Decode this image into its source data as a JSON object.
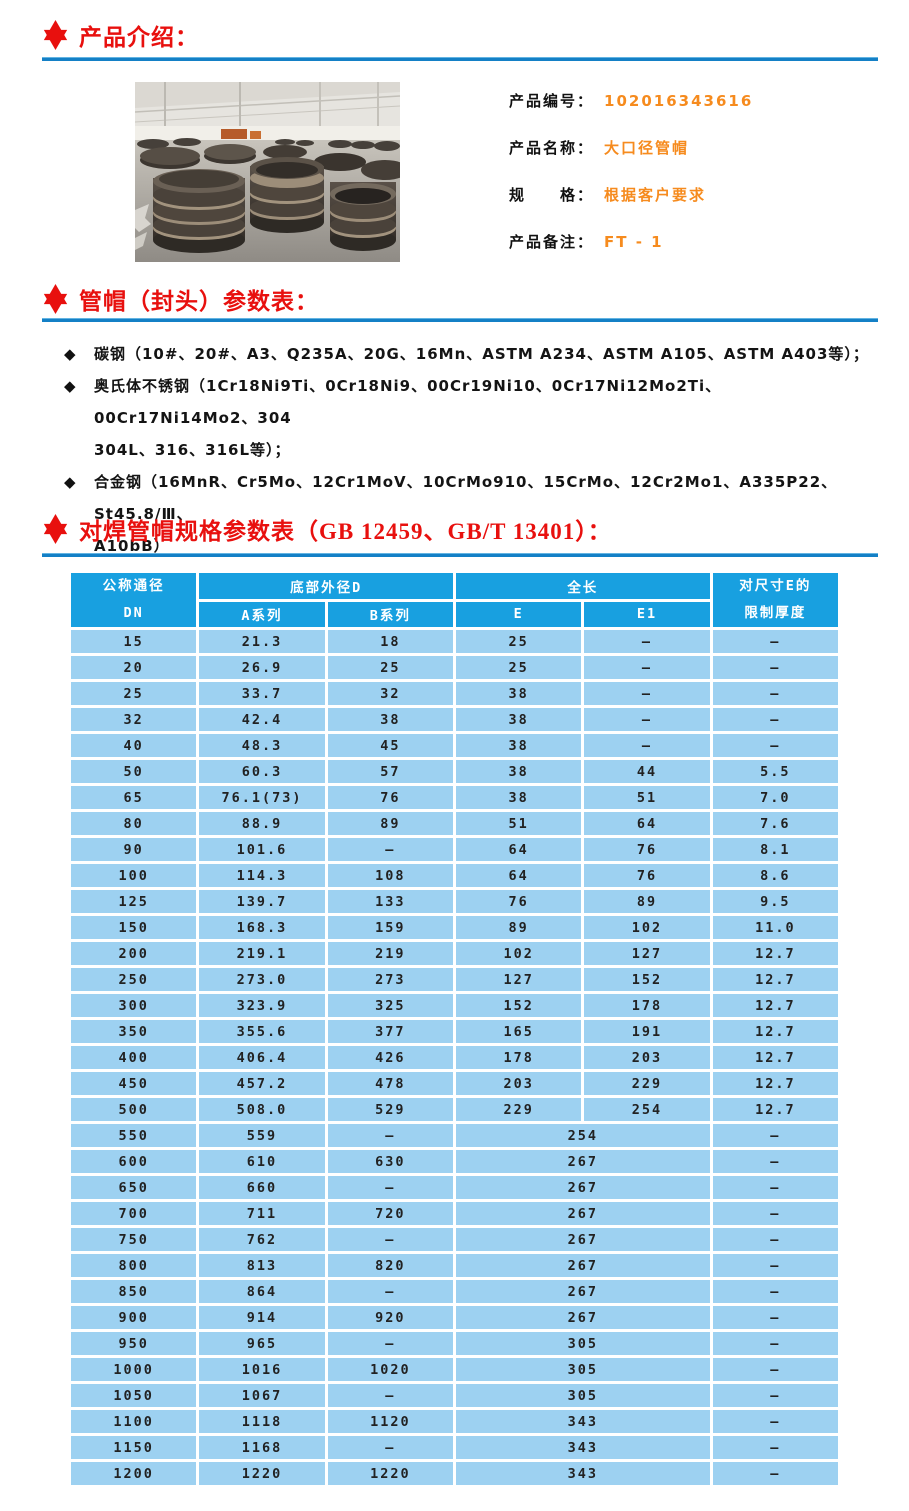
{
  "colors": {
    "heading_red": "#e8100e",
    "rule_blue": "#1480c6",
    "value_orange": "#f68b1e",
    "table_header_blue": "#18a0e0",
    "table_row_blue": "#9dd1f1"
  },
  "intro": {
    "title": "产品介绍："
  },
  "product": {
    "photo_alt": "warehouse with stacked large-diameter steel pipe caps",
    "fields": [
      {
        "label": "产品编号：",
        "value": "102016343616"
      },
      {
        "label": "产品名称：",
        "value": "大口径管帽"
      },
      {
        "label": "规　　格：",
        "value": "根据客户要求"
      },
      {
        "label": "产品备注：",
        "value": "FT - 1"
      }
    ]
  },
  "params": {
    "title": "管帽（封头）参数表：",
    "bullet_glyph": "◆",
    "items": [
      {
        "lines": [
          "碳钢（10#、20#、A3、Q235A、20G、16Mn、ASTM A234、ASTM A105、ASTM A403等）；",
          ""
        ]
      },
      {
        "lines": [
          "奥氏体不锈钢（1Cr18Ni9Ti、0Cr18Ni9、00Cr19Ni10、0Cr17Ni12Mo2Ti、00Cr17Ni14Mo2、304",
          "304L、316、316L等）；"
        ]
      },
      {
        "lines": [
          "合金钢（16MnR、Cr5Mo、12Cr1MoV、10CrMo910、15CrMo、12Cr2Mo1、A335P22、St45.8/Ⅲ、",
          "A10bB）"
        ]
      }
    ]
  },
  "spec": {
    "title_main": "对焊管帽规格参数表",
    "title_std": "（GB 12459、GB/T 13401）："
  },
  "table": {
    "header": {
      "dn_top": "公称通径",
      "dn_bottom": "DN",
      "d_group": "底部外径D",
      "a_series": "A系列",
      "b_series": "B系列",
      "len_group": "全长",
      "e": "E",
      "e1": "E1",
      "t_top": "对尺寸E的",
      "t_bottom": "限制厚度"
    },
    "rows": [
      {
        "dn": "15",
        "a": "21.3",
        "b": "18",
        "e": "25",
        "e1": "–",
        "t": "–"
      },
      {
        "dn": "20",
        "a": "26.9",
        "b": "25",
        "e": "25",
        "e1": "–",
        "t": "–"
      },
      {
        "dn": "25",
        "a": "33.7",
        "b": "32",
        "e": "38",
        "e1": "–",
        "t": "–"
      },
      {
        "dn": "32",
        "a": "42.4",
        "b": "38",
        "e": "38",
        "e1": "–",
        "t": "–"
      },
      {
        "dn": "40",
        "a": "48.3",
        "b": "45",
        "e": "38",
        "e1": "–",
        "t": "–"
      },
      {
        "dn": "50",
        "a": "60.3",
        "b": "57",
        "e": "38",
        "e1": "44",
        "t": "5.5"
      },
      {
        "dn": "65",
        "a": "76.1(73)",
        "b": "76",
        "e": "38",
        "e1": "51",
        "t": "7.0"
      },
      {
        "dn": "80",
        "a": "88.9",
        "b": "89",
        "e": "51",
        "e1": "64",
        "t": "7.6"
      },
      {
        "dn": "90",
        "a": "101.6",
        "b": "–",
        "e": "64",
        "e1": "76",
        "t": "8.1"
      },
      {
        "dn": "100",
        "a": "114.3",
        "b": "108",
        "e": "64",
        "e1": "76",
        "t": "8.6"
      },
      {
        "dn": "125",
        "a": "139.7",
        "b": "133",
        "e": "76",
        "e1": "89",
        "t": "9.5"
      },
      {
        "dn": "150",
        "a": "168.3",
        "b": "159",
        "e": "89",
        "e1": "102",
        "t": "11.0"
      },
      {
        "dn": "200",
        "a": "219.1",
        "b": "219",
        "e": "102",
        "e1": "127",
        "t": "12.7"
      },
      {
        "dn": "250",
        "a": "273.0",
        "b": "273",
        "e": "127",
        "e1": "152",
        "t": "12.7"
      },
      {
        "dn": "300",
        "a": "323.9",
        "b": "325",
        "e": "152",
        "e1": "178",
        "t": "12.7"
      },
      {
        "dn": "350",
        "a": "355.6",
        "b": "377",
        "e": "165",
        "e1": "191",
        "t": "12.7"
      },
      {
        "dn": "400",
        "a": "406.4",
        "b": "426",
        "e": "178",
        "e1": "203",
        "t": "12.7"
      },
      {
        "dn": "450",
        "a": "457.2",
        "b": "478",
        "e": "203",
        "e1": "229",
        "t": "12.7"
      },
      {
        "dn": "500",
        "a": "508.0",
        "b": "529",
        "e": "229",
        "e1": "254",
        "t": "12.7"
      },
      {
        "dn": "550",
        "a": "559",
        "b": "–",
        "e": "254",
        "merged": true,
        "t": "–"
      },
      {
        "dn": "600",
        "a": "610",
        "b": "630",
        "e": "267",
        "merged": true,
        "t": "–"
      },
      {
        "dn": "650",
        "a": "660",
        "b": "–",
        "e": "267",
        "merged": true,
        "t": "–"
      },
      {
        "dn": "700",
        "a": "711",
        "b": "720",
        "e": "267",
        "merged": true,
        "t": "–"
      },
      {
        "dn": "750",
        "a": "762",
        "b": "–",
        "e": "267",
        "merged": true,
        "t": "–"
      },
      {
        "dn": "800",
        "a": "813",
        "b": "820",
        "e": "267",
        "merged": true,
        "t": "–"
      },
      {
        "dn": "850",
        "a": "864",
        "b": "–",
        "e": "267",
        "merged": true,
        "t": "–"
      },
      {
        "dn": "900",
        "a": "914",
        "b": "920",
        "e": "267",
        "merged": true,
        "t": "–"
      },
      {
        "dn": "950",
        "a": "965",
        "b": "–",
        "e": "305",
        "merged": true,
        "t": "–"
      },
      {
        "dn": "1000",
        "a": "1016",
        "b": "1020",
        "e": "305",
        "merged": true,
        "t": "–"
      },
      {
        "dn": "1050",
        "a": "1067",
        "b": "–",
        "e": "305",
        "merged": true,
        "t": "–"
      },
      {
        "dn": "1100",
        "a": "1118",
        "b": "1120",
        "e": "343",
        "merged": true,
        "t": "–"
      },
      {
        "dn": "1150",
        "a": "1168",
        "b": "–",
        "e": "343",
        "merged": true,
        "t": "–"
      },
      {
        "dn": "1200",
        "a": "1220",
        "b": "1220",
        "e": "343",
        "merged": true,
        "t": "–"
      }
    ]
  }
}
